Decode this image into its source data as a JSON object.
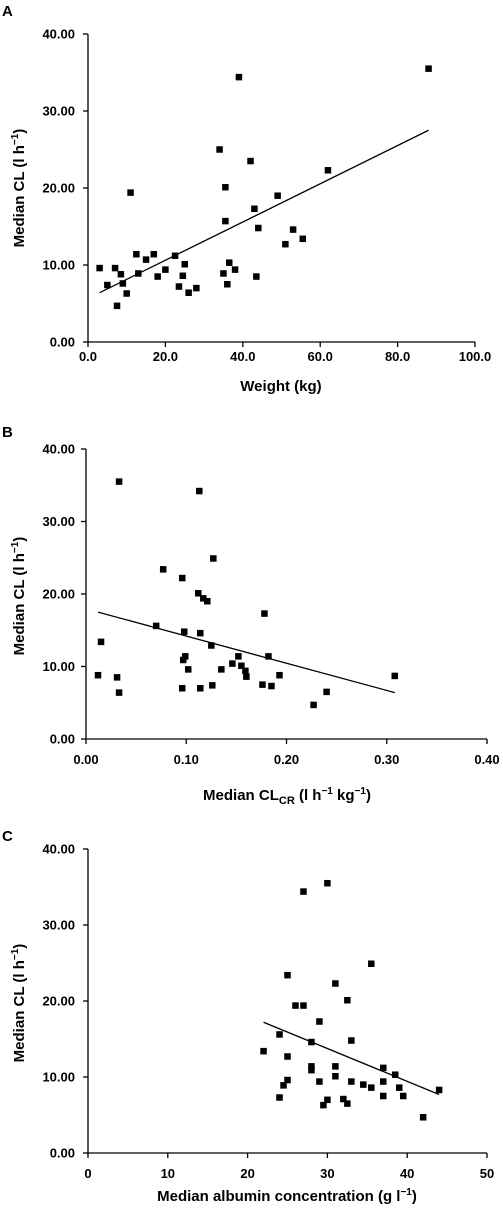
{
  "chart_data": [
    {
      "panel": "A",
      "type": "scatter",
      "xlabel": "Weight (kg)",
      "ylabel_main": "Median CL (l h",
      "ylabel_sup": "−1",
      "ylabel_end": ")",
      "xlim": [
        0,
        100
      ],
      "ylim": [
        0,
        40
      ],
      "xticks": [
        0,
        20,
        40,
        60,
        80,
        100
      ],
      "xtick_labels": [
        "0.0",
        "20.0",
        "40.0",
        "60.0",
        "80.0",
        "100.0"
      ],
      "yticks": [
        0,
        10,
        20,
        30,
        40
      ],
      "ytick_labels": [
        "0.00",
        "10.00",
        "20.00",
        "30.00",
        "40.00"
      ],
      "grid": false,
      "points": [
        [
          3.0,
          9.6
        ],
        [
          5.0,
          7.4
        ],
        [
          7.0,
          9.6
        ],
        [
          7.5,
          4.7
        ],
        [
          8.5,
          8.8
        ],
        [
          9.0,
          7.6
        ],
        [
          10.0,
          6.3
        ],
        [
          11.0,
          19.4
        ],
        [
          12.5,
          11.4
        ],
        [
          13.0,
          8.9
        ],
        [
          15.0,
          10.7
        ],
        [
          17.0,
          11.4
        ],
        [
          18.0,
          8.5
        ],
        [
          20.0,
          9.4
        ],
        [
          22.5,
          11.2
        ],
        [
          23.5,
          7.2
        ],
        [
          24.5,
          8.6
        ],
        [
          25.0,
          10.1
        ],
        [
          26.0,
          6.4
        ],
        [
          28.0,
          7.0
        ],
        [
          34.0,
          25.0
        ],
        [
          35.0,
          8.9
        ],
        [
          35.5,
          20.1
        ],
        [
          35.5,
          15.7
        ],
        [
          36.0,
          7.5
        ],
        [
          36.5,
          10.3
        ],
        [
          38.0,
          9.4
        ],
        [
          39.0,
          34.4
        ],
        [
          42.0,
          23.5
        ],
        [
          43.0,
          17.3
        ],
        [
          43.5,
          8.5
        ],
        [
          44.0,
          14.8
        ],
        [
          49.0,
          19.0
        ],
        [
          51.0,
          12.7
        ],
        [
          53.0,
          14.6
        ],
        [
          55.5,
          13.4
        ],
        [
          62.0,
          22.3
        ],
        [
          88.0,
          35.5
        ]
      ],
      "fit_line": [
        [
          3.0,
          6.4
        ],
        [
          88.0,
          27.5
        ]
      ]
    },
    {
      "panel": "B",
      "type": "scatter",
      "xlabel_main": "Median CL",
      "xlabel_sub": "CR",
      "xlabel_rest": " (l h",
      "xlabel_sup1": "−1",
      "xlabel_mid": " kg",
      "xlabel_sup2": "−1",
      "xlabel_end": ")",
      "ylabel_main": "Median CL (l h",
      "ylabel_sup": "−1",
      "ylabel_end": ")",
      "xlim": [
        0,
        0.4
      ],
      "ylim": [
        0,
        40
      ],
      "xticks": [
        0,
        0.1,
        0.2,
        0.3,
        0.4
      ],
      "xtick_labels": [
        "0.00",
        "0.10",
        "0.20",
        "0.30",
        "0.40"
      ],
      "yticks": [
        0,
        10,
        20,
        30,
        40
      ],
      "ytick_labels": [
        "0.00",
        "10.00",
        "20.00",
        "30.00",
        "40.00"
      ],
      "grid": false,
      "points": [
        [
          0.012,
          8.8
        ],
        [
          0.015,
          13.4
        ],
        [
          0.031,
          8.5
        ],
        [
          0.033,
          35.5
        ],
        [
          0.033,
          6.4
        ],
        [
          0.07,
          15.6
        ],
        [
          0.077,
          23.4
        ],
        [
          0.096,
          22.2
        ],
        [
          0.096,
          7.0
        ],
        [
          0.097,
          10.9
        ],
        [
          0.098,
          14.8
        ],
        [
          0.099,
          11.4
        ],
        [
          0.102,
          9.6
        ],
        [
          0.112,
          20.1
        ],
        [
          0.113,
          34.2
        ],
        [
          0.114,
          14.6
        ],
        [
          0.114,
          7.0
        ],
        [
          0.117,
          19.4
        ],
        [
          0.121,
          19.0
        ],
        [
          0.125,
          12.9
        ],
        [
          0.126,
          7.4
        ],
        [
          0.127,
          24.9
        ],
        [
          0.135,
          9.6
        ],
        [
          0.146,
          10.4
        ],
        [
          0.152,
          11.4
        ],
        [
          0.155,
          10.1
        ],
        [
          0.159,
          9.4
        ],
        [
          0.16,
          8.6
        ],
        [
          0.176,
          7.5
        ],
        [
          0.178,
          17.3
        ],
        [
          0.182,
          11.4
        ],
        [
          0.185,
          7.3
        ],
        [
          0.193,
          8.8
        ],
        [
          0.227,
          4.7
        ],
        [
          0.24,
          6.5
        ],
        [
          0.308,
          8.7
        ]
      ],
      "fit_line": [
        [
          0.012,
          17.5
        ],
        [
          0.308,
          6.4
        ]
      ]
    },
    {
      "panel": "C",
      "type": "scatter",
      "xlabel_main": "Median albumin concentration (g l",
      "xlabel_sup": "−1",
      "xlabel_end": ")",
      "ylabel_main": "Median CL (l h",
      "ylabel_sup": "−1",
      "ylabel_end": ")",
      "xlim": [
        0,
        50
      ],
      "ylim": [
        0,
        40
      ],
      "xticks": [
        0,
        10,
        20,
        30,
        40,
        50
      ],
      "xtick_labels": [
        "0",
        "10",
        "20",
        "30",
        "40",
        "50"
      ],
      "yticks": [
        0,
        10,
        20,
        30,
        40
      ],
      "ytick_labels": [
        "0.00",
        "10.00",
        "20.00",
        "30.00",
        "40.00"
      ],
      "grid": false,
      "points": [
        [
          22.0,
          13.4
        ],
        [
          24.0,
          15.6
        ],
        [
          24.0,
          7.3
        ],
        [
          24.5,
          8.9
        ],
        [
          25.0,
          23.4
        ],
        [
          25.0,
          12.7
        ],
        [
          25.0,
          9.6
        ],
        [
          26.0,
          19.4
        ],
        [
          27.0,
          34.4
        ],
        [
          27.0,
          19.4
        ],
        [
          28.0,
          14.6
        ],
        [
          28.0,
          11.4
        ],
        [
          28.0,
          10.9
        ],
        [
          29.0,
          17.3
        ],
        [
          29.0,
          9.4
        ],
        [
          29.5,
          6.3
        ],
        [
          30.0,
          35.5
        ],
        [
          30.0,
          7.0
        ],
        [
          31.0,
          22.3
        ],
        [
          31.0,
          11.4
        ],
        [
          31.0,
          10.1
        ],
        [
          32.0,
          7.1
        ],
        [
          32.5,
          20.1
        ],
        [
          32.5,
          6.5
        ],
        [
          33.0,
          14.8
        ],
        [
          33.0,
          9.4
        ],
        [
          34.5,
          9.0
        ],
        [
          35.5,
          24.9
        ],
        [
          35.5,
          8.6
        ],
        [
          37.0,
          11.2
        ],
        [
          37.0,
          9.4
        ],
        [
          37.0,
          7.5
        ],
        [
          38.5,
          10.3
        ],
        [
          39.0,
          8.6
        ],
        [
          39.5,
          7.5
        ],
        [
          42.0,
          4.7
        ],
        [
          44.0,
          8.3
        ]
      ],
      "fit_line": [
        [
          22.0,
          17.2
        ],
        [
          44.0,
          7.7
        ]
      ]
    }
  ]
}
